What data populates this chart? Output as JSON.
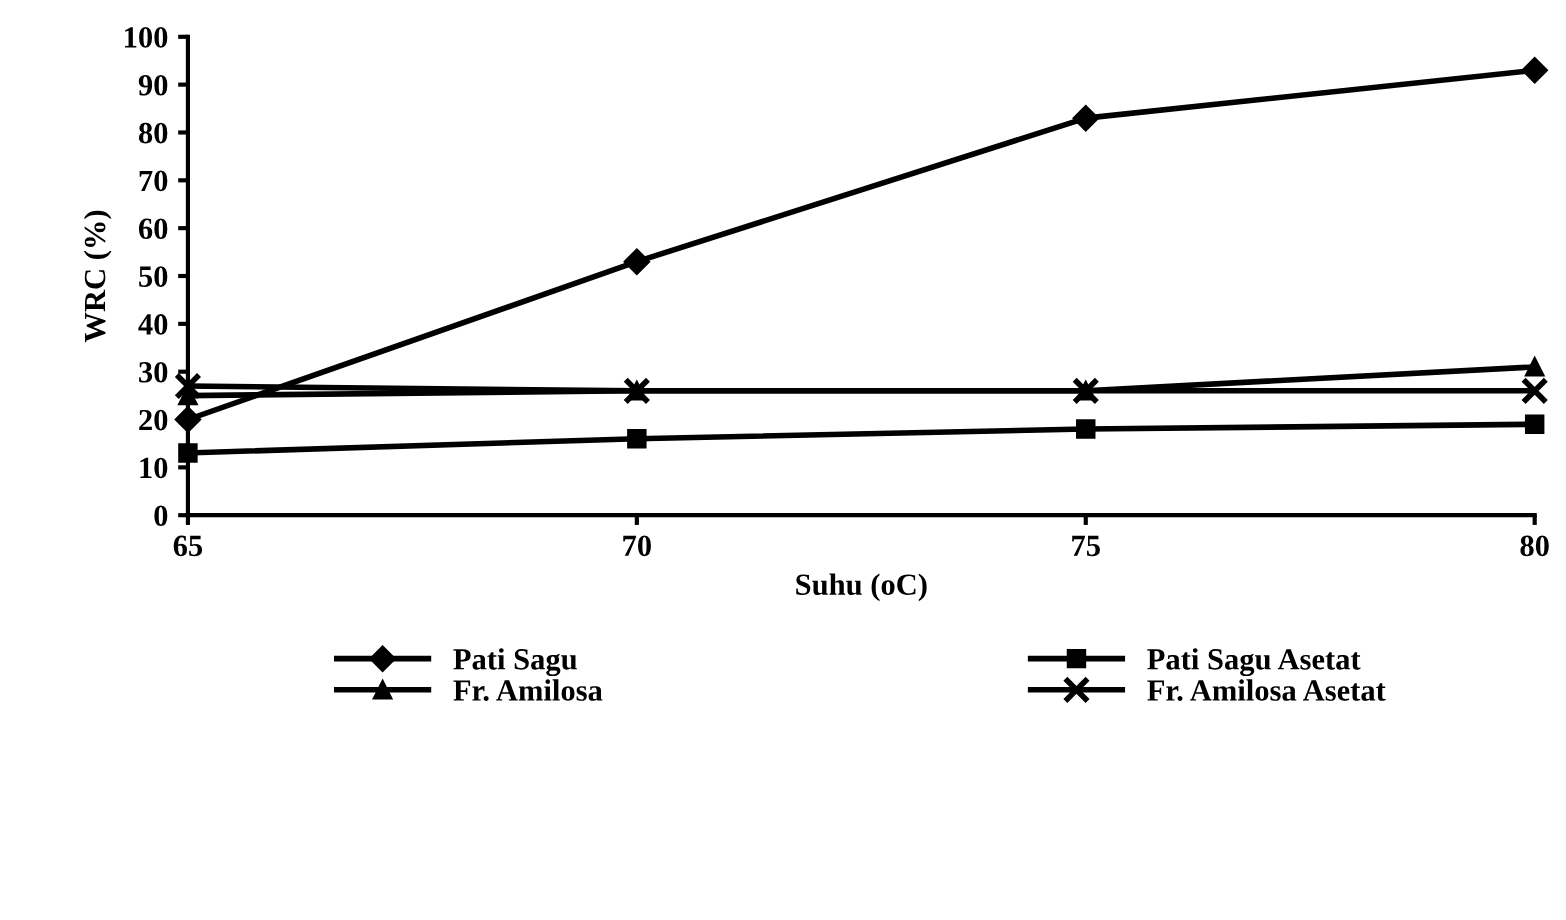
{
  "chart_data": {
    "type": "line",
    "xlabel": "Suhu (oC)",
    "ylabel": "WRC (%)",
    "x": [
      65,
      70,
      75,
      80
    ],
    "series": [
      {
        "name": "Pati Sagu",
        "color": "#000000",
        "marker": "diamond",
        "values": [
          20,
          53,
          83,
          93
        ]
      },
      {
        "name": "Fr. Amilosa",
        "color": "#000000",
        "marker": "triangle",
        "values": [
          25,
          26,
          26,
          31
        ]
      },
      {
        "name": "Pati Sagu Asetat",
        "color": "#000000",
        "marker": "square",
        "values": [
          13,
          16,
          18,
          19
        ]
      },
      {
        "name": "Fr. Amilosa Asetat",
        "color": "#000000",
        "marker": "cross",
        "values": [
          27,
          26,
          26,
          26
        ]
      }
    ],
    "xlim": [
      65,
      80
    ],
    "xticks": [
      65,
      70,
      75,
      80
    ],
    "ylim": [
      0,
      100
    ],
    "yticks": [
      0,
      10,
      20,
      30,
      40,
      50,
      60,
      70,
      80,
      90,
      100
    ],
    "grid": false,
    "legend": "bottom",
    "line_style": "solid"
  }
}
